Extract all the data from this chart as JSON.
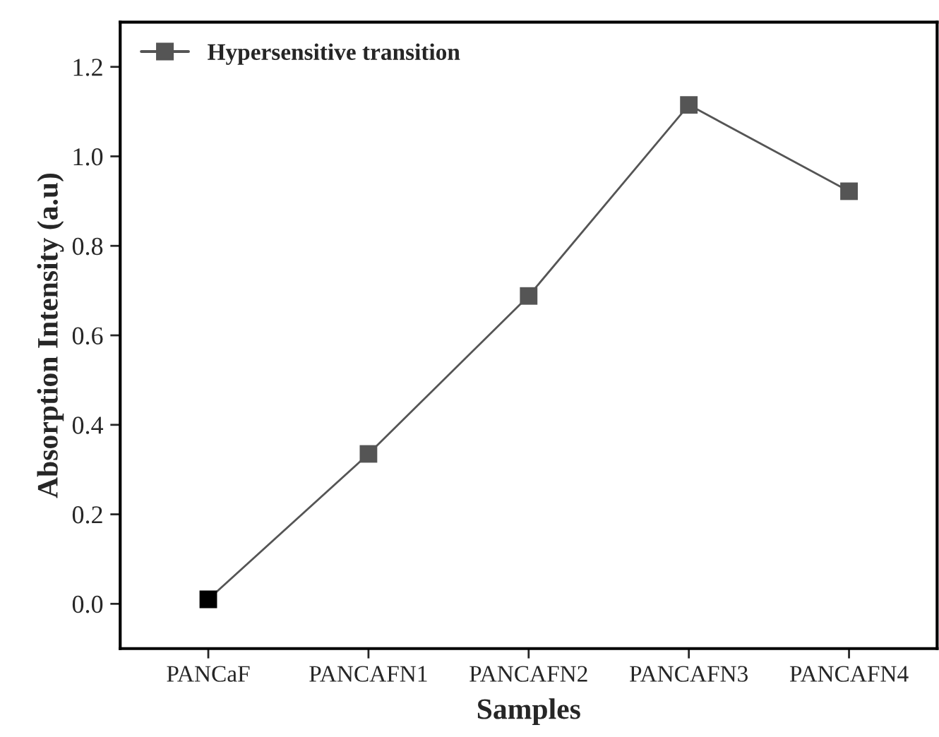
{
  "chart_data": {
    "type": "line",
    "xlabel": "Samples",
    "ylabel": "Absorption Intensity (a.u)",
    "categories": [
      "PANCaF",
      "PANCAFN1",
      "PANCAFN2",
      "PANCAFN3",
      "PANCAFN4"
    ],
    "series": [
      {
        "name": "Hypersensitive transition",
        "color": "#555555",
        "colors": [
          "#000000",
          "#555555",
          "#555555",
          "#555555",
          "#555555"
        ],
        "values": [
          0.01,
          0.335,
          0.688,
          1.115,
          0.922
        ]
      }
    ],
    "ylim": [
      -0.1,
      1.3
    ],
    "yticks": [
      {
        "value": 0,
        "label": "0.0"
      },
      0.2,
      0.4,
      0.6,
      0.8,
      {
        "value": 1,
        "label": "1.0"
      },
      1.2
    ],
    "marker": "square",
    "line_style": "solid",
    "legend": "top left",
    "grid": false
  }
}
